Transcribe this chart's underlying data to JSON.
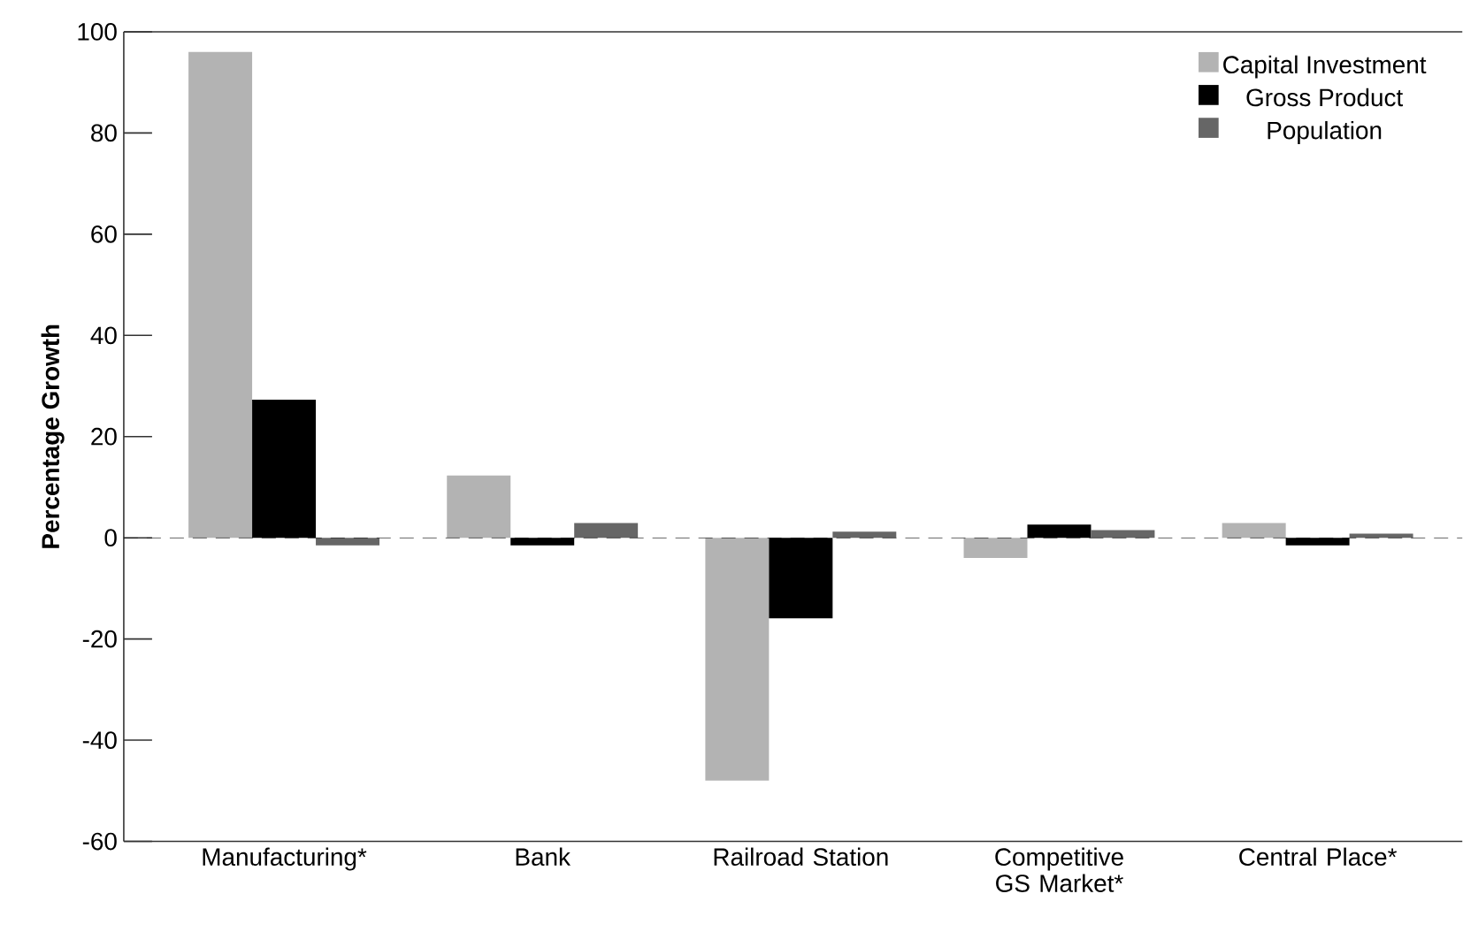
{
  "chart_data": {
    "type": "bar",
    "ylabel": "Percentage Growth",
    "categories": [
      "Manufacturing*",
      "Bank",
      "Railroad Station",
      "Competitive GS Market*",
      "Central Place*"
    ],
    "series": [
      {
        "name": "Capital Investment",
        "color": "#b3b3b3",
        "values": [
          96,
          12.3,
          -48,
          -4,
          2.9
        ]
      },
      {
        "name": "Gross Product",
        "color": "#000000",
        "values": [
          27.3,
          -1.5,
          -15.9,
          2.6,
          -1.5
        ]
      },
      {
        "name": "Population",
        "color": "#666666",
        "values": [
          -1.5,
          2.9,
          1.2,
          1.5,
          0.8
        ]
      }
    ],
    "ylim": [
      -60,
      100
    ],
    "yticks": [
      -60,
      -40,
      -20,
      0,
      20,
      40,
      60,
      80,
      100
    ],
    "ref_lines": [
      {
        "axis": "y",
        "value": 0,
        "line_style": "dashed",
        "color": "#000000"
      }
    ],
    "legend": "top right",
    "grid": false
  }
}
